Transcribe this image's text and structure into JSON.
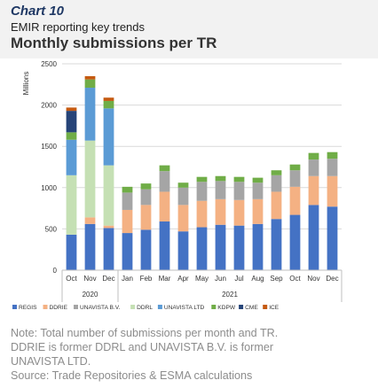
{
  "header": {
    "chart_number": "Chart 10",
    "subtitle": "EMIR reporting key trends",
    "title": "Monthly submissions per TR"
  },
  "note": {
    "line1": "Note: Total number of submissions per month and TR.",
    "line2": "DDRIE is former DDRL and UNAVISTA B.V. is former",
    "line3": "UNAVISTA LTD.",
    "source": "Source: Trade Repositories & ESMA calculations"
  },
  "chart_data": {
    "type": "bar",
    "stacked": true,
    "ylabel": "Millions",
    "ylim": [
      0,
      2500
    ],
    "yticks": [
      0,
      500,
      1000,
      1500,
      2000,
      2500
    ],
    "grid": true,
    "legend_position": "bottom",
    "categories": [
      "Oct",
      "Nov",
      "Dec",
      "Jan",
      "Feb",
      "Mar",
      "Apr",
      "May",
      "Jun",
      "Jul",
      "Aug",
      "Sep",
      "Oct",
      "Nov",
      "Dec"
    ],
    "year_groups": [
      {
        "label": "2020",
        "start": 0,
        "end": 2
      },
      {
        "label": "2021",
        "start": 3,
        "end": 14
      }
    ],
    "series": [
      {
        "name": "REGIS",
        "color": "#4472c4",
        "values": [
          430,
          560,
          510,
          450,
          490,
          590,
          470,
          520,
          550,
          540,
          560,
          620,
          670,
          790,
          770
        ]
      },
      {
        "name": "DDRIE",
        "color": "#f4b183",
        "values": [
          0,
          80,
          30,
          280,
          300,
          360,
          320,
          320,
          310,
          310,
          300,
          330,
          340,
          350,
          370
        ]
      },
      {
        "name": "UNAVISTA B.V.",
        "color": "#a5a5a5",
        "values": [
          0,
          0,
          0,
          210,
          190,
          250,
          210,
          230,
          220,
          220,
          200,
          200,
          200,
          200,
          210
        ]
      },
      {
        "name": "DDRL",
        "color": "#c5e0b4",
        "values": [
          720,
          930,
          730,
          0,
          0,
          0,
          0,
          0,
          0,
          0,
          0,
          0,
          0,
          0,
          0
        ]
      },
      {
        "name": "UNAVISTA LTD",
        "color": "#5b9bd5",
        "values": [
          430,
          640,
          690,
          0,
          0,
          0,
          0,
          0,
          0,
          0,
          0,
          0,
          0,
          0,
          0
        ]
      },
      {
        "name": "KDPW",
        "color": "#70ad47",
        "values": [
          90,
          100,
          90,
          70,
          70,
          70,
          60,
          60,
          60,
          60,
          60,
          60,
          70,
          80,
          80
        ]
      },
      {
        "name": "CME",
        "color": "#264478",
        "values": [
          260,
          0,
          0,
          0,
          0,
          0,
          0,
          0,
          0,
          0,
          0,
          0,
          0,
          0,
          0
        ]
      },
      {
        "name": "ICE",
        "color": "#c55a11",
        "values": [
          40,
          40,
          40,
          0,
          0,
          0,
          0,
          0,
          0,
          0,
          0,
          0,
          0,
          0,
          0
        ]
      }
    ]
  }
}
